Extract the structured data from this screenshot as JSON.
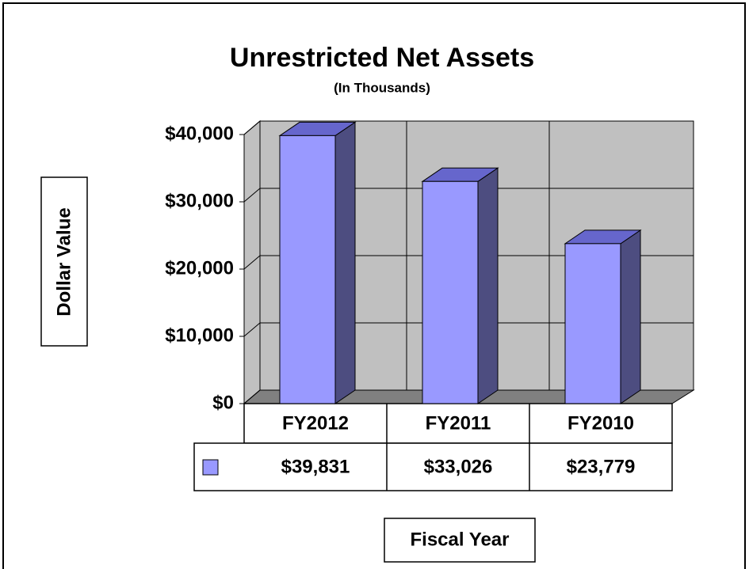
{
  "chart_data": {
    "type": "bar",
    "title": "Unrestricted Net Assets",
    "subtitle": "(In Thousands)",
    "y_label": "Dollar Value",
    "x_label": "Fiscal Year",
    "categories": [
      "FY2012",
      "FY2011",
      "FY2010"
    ],
    "values": [
      39831,
      33026,
      23779
    ],
    "value_labels": [
      "$39,831",
      "$33,026",
      "$23,779"
    ],
    "color": "#9999ff",
    "ylim": [
      0,
      40000
    ],
    "yticks": [
      {
        "value": 0,
        "label": "$0"
      },
      {
        "value": 10000,
        "label": "$10,000"
      },
      {
        "value": 20000,
        "label": "$20,000"
      },
      {
        "value": 30000,
        "label": "$30,000"
      },
      {
        "value": 40000,
        "label": "$40,000"
      }
    ],
    "grid": true
  }
}
